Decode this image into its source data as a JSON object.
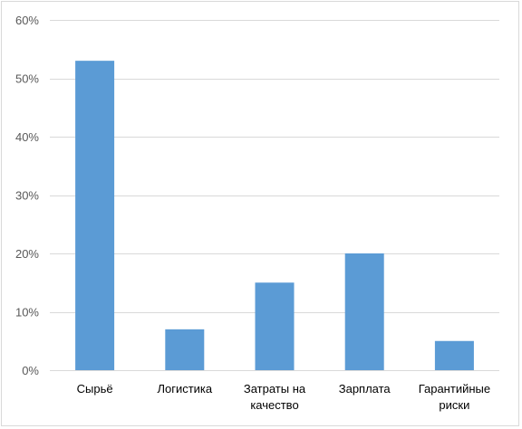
{
  "chart_data": {
    "type": "bar",
    "categories": [
      [
        "Сырьё"
      ],
      [
        "Логистика"
      ],
      [
        "Затраты на",
        "качество"
      ],
      [
        "Зарплата"
      ],
      [
        "Гарантийные",
        "риски"
      ]
    ],
    "values": [
      53,
      7,
      15,
      20,
      5
    ],
    "ylim": [
      0,
      60
    ],
    "yticks": [
      0,
      10,
      20,
      30,
      40,
      50,
      60
    ],
    "ytick_labels": [
      "0%",
      "10%",
      "20%",
      "30%",
      "40%",
      "50%",
      "60%"
    ],
    "grid": true,
    "legend": "none",
    "colors": {
      "bar": "#5b9bd5",
      "grid": "#d9d9d9",
      "axis": "#d9d9d9"
    }
  }
}
